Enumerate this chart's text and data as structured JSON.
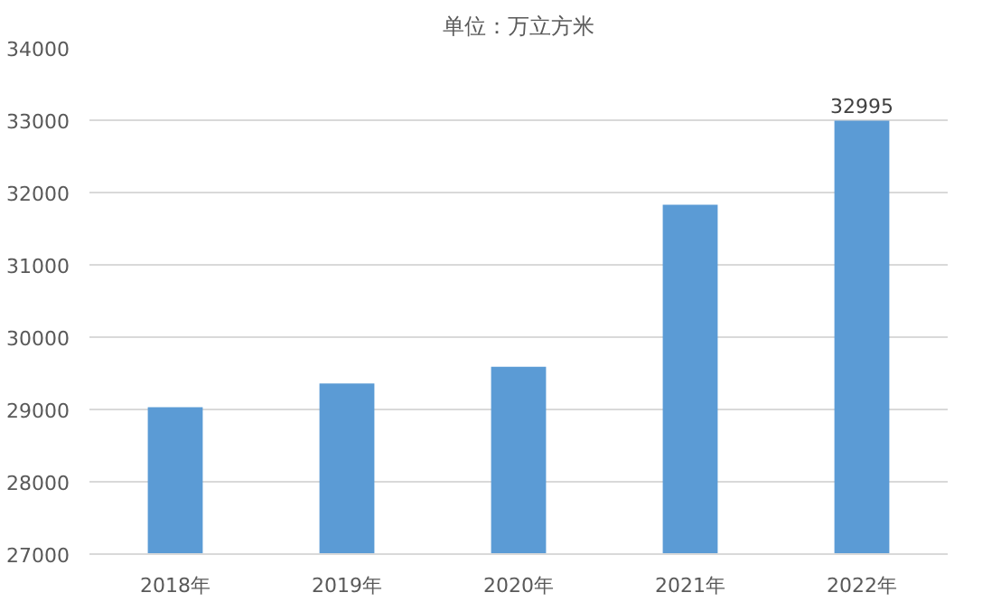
{
  "chart_data": {
    "type": "bar",
    "title": "单位：万立方米",
    "categories": [
      "2018年",
      "2019年",
      "2020年",
      "2021年",
      "2022年"
    ],
    "values": [
      29030,
      29360,
      29590,
      31830,
      32995
    ],
    "value_labels": [
      null,
      null,
      null,
      null,
      "32995"
    ],
    "color": "#5b9bd5",
    "ylim": [
      27000,
      34000
    ],
    "yticks": [
      27000,
      28000,
      29000,
      30000,
      31000,
      32000,
      33000,
      34000
    ],
    "grid": "y"
  }
}
